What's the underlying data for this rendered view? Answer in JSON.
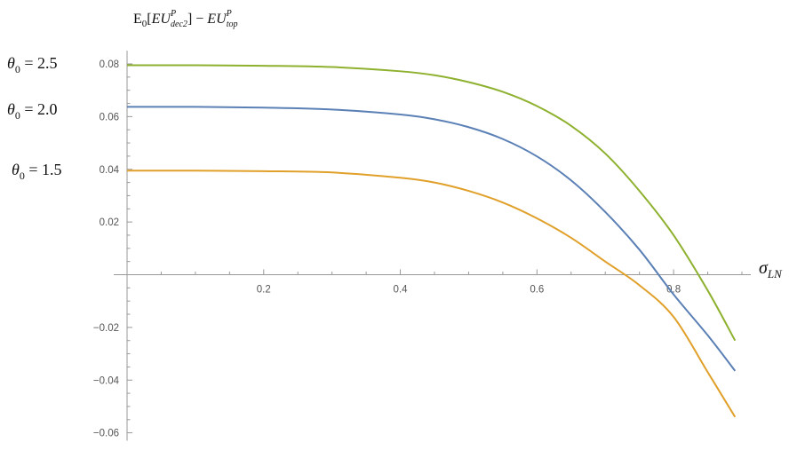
{
  "chart_data": {
    "type": "line",
    "title": "",
    "ylabel": {
      "prefix": "E",
      "prefix_sub": "0",
      "open": "[",
      "term1": "EU",
      "term1_sup": "P",
      "term1_sub": "dec2",
      "close": "]",
      "minus": " − ",
      "term2": "EU",
      "term2_sup": "P",
      "term2_sub": "top"
    },
    "xlabel": {
      "base": "σ",
      "sub": "LN"
    },
    "xlim": [
      0,
      0.9
    ],
    "ylim": [
      -0.06,
      0.08
    ],
    "x_ticks": [
      {
        "value": 0.2,
        "label": "0.2"
      },
      {
        "value": 0.4,
        "label": "0.4"
      },
      {
        "value": 0.6,
        "label": "0.6"
      },
      {
        "value": 0.8,
        "label": "0.8"
      }
    ],
    "y_ticks": [
      {
        "value": 0.08,
        "label": "0.08"
      },
      {
        "value": 0.06,
        "label": "0.06"
      },
      {
        "value": 0.04,
        "label": "0.04"
      },
      {
        "value": 0.02,
        "label": "0.02"
      },
      {
        "value": -0.02,
        "label": "−0.02"
      },
      {
        "value": -0.04,
        "label": "−0.04"
      },
      {
        "value": -0.06,
        "label": "−0.06"
      }
    ],
    "series_labels": [
      {
        "theta": "θ",
        "sub": "0",
        "eq": " = 2.5",
        "series": 0
      },
      {
        "theta": "θ",
        "sub": "0",
        "eq": " = 2.0",
        "series": 1
      },
      {
        "theta": "θ",
        "sub": "0",
        "eq": " = 1.5",
        "series": 2
      }
    ],
    "series": [
      {
        "color": "#8eb12f",
        "x": [
          0,
          0.1,
          0.2,
          0.3,
          0.4,
          0.45,
          0.5,
          0.55,
          0.6,
          0.65,
          0.7,
          0.75,
          0.8,
          0.85,
          0.89
        ],
        "y": [
          0.0795,
          0.0795,
          0.0793,
          0.0788,
          0.0772,
          0.0757,
          0.0731,
          0.0694,
          0.064,
          0.0565,
          0.046,
          0.0318,
          0.015,
          -0.006,
          -0.025
        ]
      },
      {
        "color": "#5b80b5",
        "x": [
          0,
          0.1,
          0.2,
          0.3,
          0.4,
          0.45,
          0.5,
          0.55,
          0.6,
          0.65,
          0.7,
          0.75,
          0.8,
          0.85,
          0.89
        ],
        "y": [
          0.0637,
          0.0637,
          0.0634,
          0.0627,
          0.0608,
          0.059,
          0.056,
          0.0515,
          0.0449,
          0.0358,
          0.0238,
          0.0095,
          -0.0075,
          -0.023,
          -0.0365
        ]
      },
      {
        "color": "#e0a02a",
        "x": [
          0,
          0.1,
          0.2,
          0.3,
          0.4,
          0.45,
          0.5,
          0.55,
          0.6,
          0.65,
          0.7,
          0.75,
          0.8,
          0.85,
          0.89
        ],
        "y": [
          0.0395,
          0.0395,
          0.0393,
          0.0388,
          0.0368,
          0.035,
          0.0318,
          0.0274,
          0.0214,
          0.014,
          0.005,
          -0.004,
          -0.016,
          -0.037,
          -0.054
        ]
      }
    ]
  }
}
